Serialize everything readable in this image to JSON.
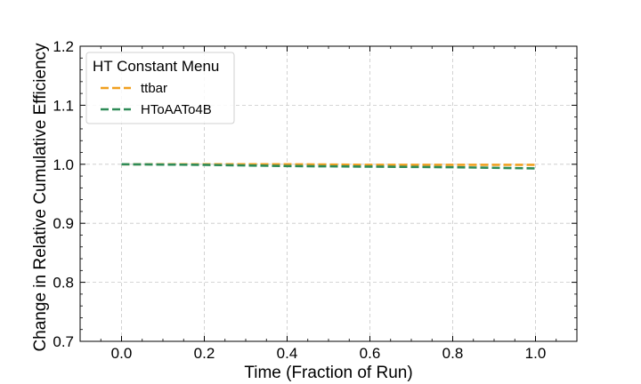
{
  "chart_data": {
    "type": "line",
    "title": "",
    "xlabel": "Time (Fraction of Run)",
    "ylabel": "Change in Relative Cumulative Efficiency",
    "xlim": [
      -0.1,
      1.1
    ],
    "ylim": [
      0.7,
      1.2
    ],
    "xticks": [
      0.0,
      0.2,
      0.4,
      0.6,
      0.8,
      1.0
    ],
    "xtick_labels": [
      "0.0",
      "0.2",
      "0.4",
      "0.6",
      "0.8",
      "1.0"
    ],
    "yticks": [
      0.7,
      0.8,
      0.9,
      1.0,
      1.1,
      1.2
    ],
    "ytick_labels": [
      "0.7",
      "0.8",
      "0.9",
      "1.0",
      "1.1",
      "1.2"
    ],
    "grid": true,
    "legend": {
      "title": "HT Constant Menu",
      "position": "top-left"
    },
    "series": [
      {
        "name": "ttbar",
        "color": "#f0a020",
        "style": "dashed",
        "x": [
          0.0,
          0.2,
          0.4,
          0.6,
          0.8,
          1.0
        ],
        "y": [
          1.0,
          1.0,
          1.0,
          0.999,
          0.999,
          0.999
        ]
      },
      {
        "name": "HToAATo4B",
        "color": "#2e8b57",
        "style": "dashed",
        "x": [
          0.0,
          0.2,
          0.4,
          0.6,
          0.8,
          1.0
        ],
        "y": [
          1.0,
          0.999,
          0.997,
          0.996,
          0.995,
          0.993
        ]
      }
    ]
  }
}
